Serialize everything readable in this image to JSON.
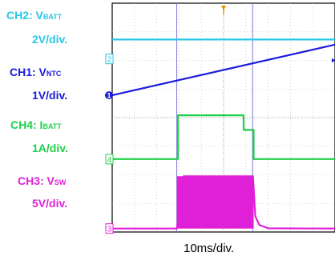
{
  "channel_labels": [
    {
      "prefix": "CH2: V",
      "sub": "BATT",
      "scale": "2V/div.",
      "color": "#29c5e6"
    },
    {
      "prefix": "CH1: V",
      "sub": "NTC",
      "scale": "1V/div.",
      "color": "#1a1adc"
    },
    {
      "prefix": "CH4: I",
      "sub": "BATT",
      "scale": "1A/div.",
      "color": "#1fd14a"
    },
    {
      "prefix": "CH3: V",
      "sub": "SW",
      "scale": "5V/div.",
      "color": "#e020d8"
    }
  ],
  "chart_data": {
    "type": "line",
    "xlabel": "10ms/div.",
    "x_divisions": 10,
    "y_divisions": 8,
    "time_unit": "div",
    "grid": true,
    "colors": {
      "ch1": "#1a1adc",
      "ch2": "#29c5e6",
      "ch3": "#e020d8",
      "ch4": "#1fd14a",
      "cursor": "#6a6ad0"
    },
    "cursors_x": [
      2.9,
      6.3
    ],
    "marker_labels": [
      "2",
      "1",
      "4",
      "3"
    ],
    "series": [
      {
        "name": "CH2: VBATT",
        "channel": 2,
        "color": "#29c5e6",
        "x": [
          0,
          10
        ],
        "y": [
          6.73,
          6.73
        ]
      },
      {
        "name": "CH1: VNTC",
        "channel": 1,
        "color": "#1a1adc",
        "x": [
          0,
          10
        ],
        "y": [
          4.78,
          6.55
        ]
      },
      {
        "name": "CH4: IBATT",
        "channel": 4,
        "color": "#1fd14a",
        "x": [
          0,
          2.95,
          2.95,
          5.9,
          5.9,
          6.35,
          6.35,
          10
        ],
        "y": [
          2.55,
          2.55,
          4.08,
          4.08,
          3.57,
          3.57,
          2.55,
          2.55
        ]
      },
      {
        "name": "CH3: VSW",
        "channel": 3,
        "color": "#e020d8",
        "x": [
          0,
          2.9,
          3.2,
          6.32,
          6.42,
          6.6,
          7.0,
          10
        ],
        "y": [
          0.12,
          0.12,
          1.95,
          1.95,
          0.55,
          0.25,
          0.13,
          0.12
        ],
        "switching_band": {
          "x_start": 2.9,
          "x_end": 6.35,
          "y_low": 0.12,
          "y_high": 1.95
        }
      }
    ]
  }
}
